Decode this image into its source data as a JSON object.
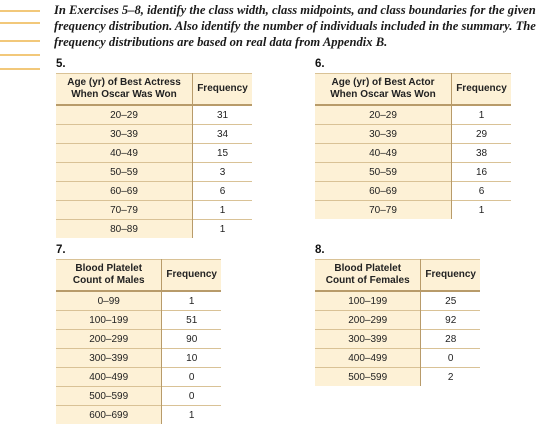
{
  "instructions": "In Exercises 5–8, identify the class width, class midpoints, and class boundaries for the given frequency distribution. Also identify the number of individuals included in the summary. The frequency distributions are based on real data from Appendix B.",
  "exercises": [
    {
      "number": "5.",
      "header_class": "Age (yr) of Best Actress When Oscar Was Won",
      "header_freq": "Frequency",
      "rows": [
        {
          "cls": "20–29",
          "freq": "31"
        },
        {
          "cls": "30–39",
          "freq": "34"
        },
        {
          "cls": "40–49",
          "freq": "15"
        },
        {
          "cls": "50–59",
          "freq": "3"
        },
        {
          "cls": "60–69",
          "freq": "6"
        },
        {
          "cls": "70–79",
          "freq": "1"
        },
        {
          "cls": "80–89",
          "freq": "1"
        }
      ]
    },
    {
      "number": "6.",
      "header_class": "Age (yr) of Best Actor When Oscar Was Won",
      "header_freq": "Frequency",
      "rows": [
        {
          "cls": "20–29",
          "freq": "1"
        },
        {
          "cls": "30–39",
          "freq": "29"
        },
        {
          "cls": "40–49",
          "freq": "38"
        },
        {
          "cls": "50–59",
          "freq": "16"
        },
        {
          "cls": "60–69",
          "freq": "6"
        },
        {
          "cls": "70–79",
          "freq": "1"
        }
      ]
    },
    {
      "number": "7.",
      "header_class": "Blood Platelet Count of Males",
      "header_freq": "Frequency",
      "rows": [
        {
          "cls": "0–99",
          "freq": "1"
        },
        {
          "cls": "100–199",
          "freq": "51"
        },
        {
          "cls": "200–299",
          "freq": "90"
        },
        {
          "cls": "300–399",
          "freq": "10"
        },
        {
          "cls": "400–499",
          "freq": "0"
        },
        {
          "cls": "500–599",
          "freq": "0"
        },
        {
          "cls": "600–699",
          "freq": "1"
        }
      ]
    },
    {
      "number": "8.",
      "header_class": "Blood Platelet Count of Females",
      "header_freq": "Frequency",
      "rows": [
        {
          "cls": "100–199",
          "freq": "25"
        },
        {
          "cls": "200–299",
          "freq": "92"
        },
        {
          "cls": "300–399",
          "freq": "28"
        },
        {
          "cls": "400–499",
          "freq": "0"
        },
        {
          "cls": "500–599",
          "freq": "2"
        }
      ]
    }
  ]
}
